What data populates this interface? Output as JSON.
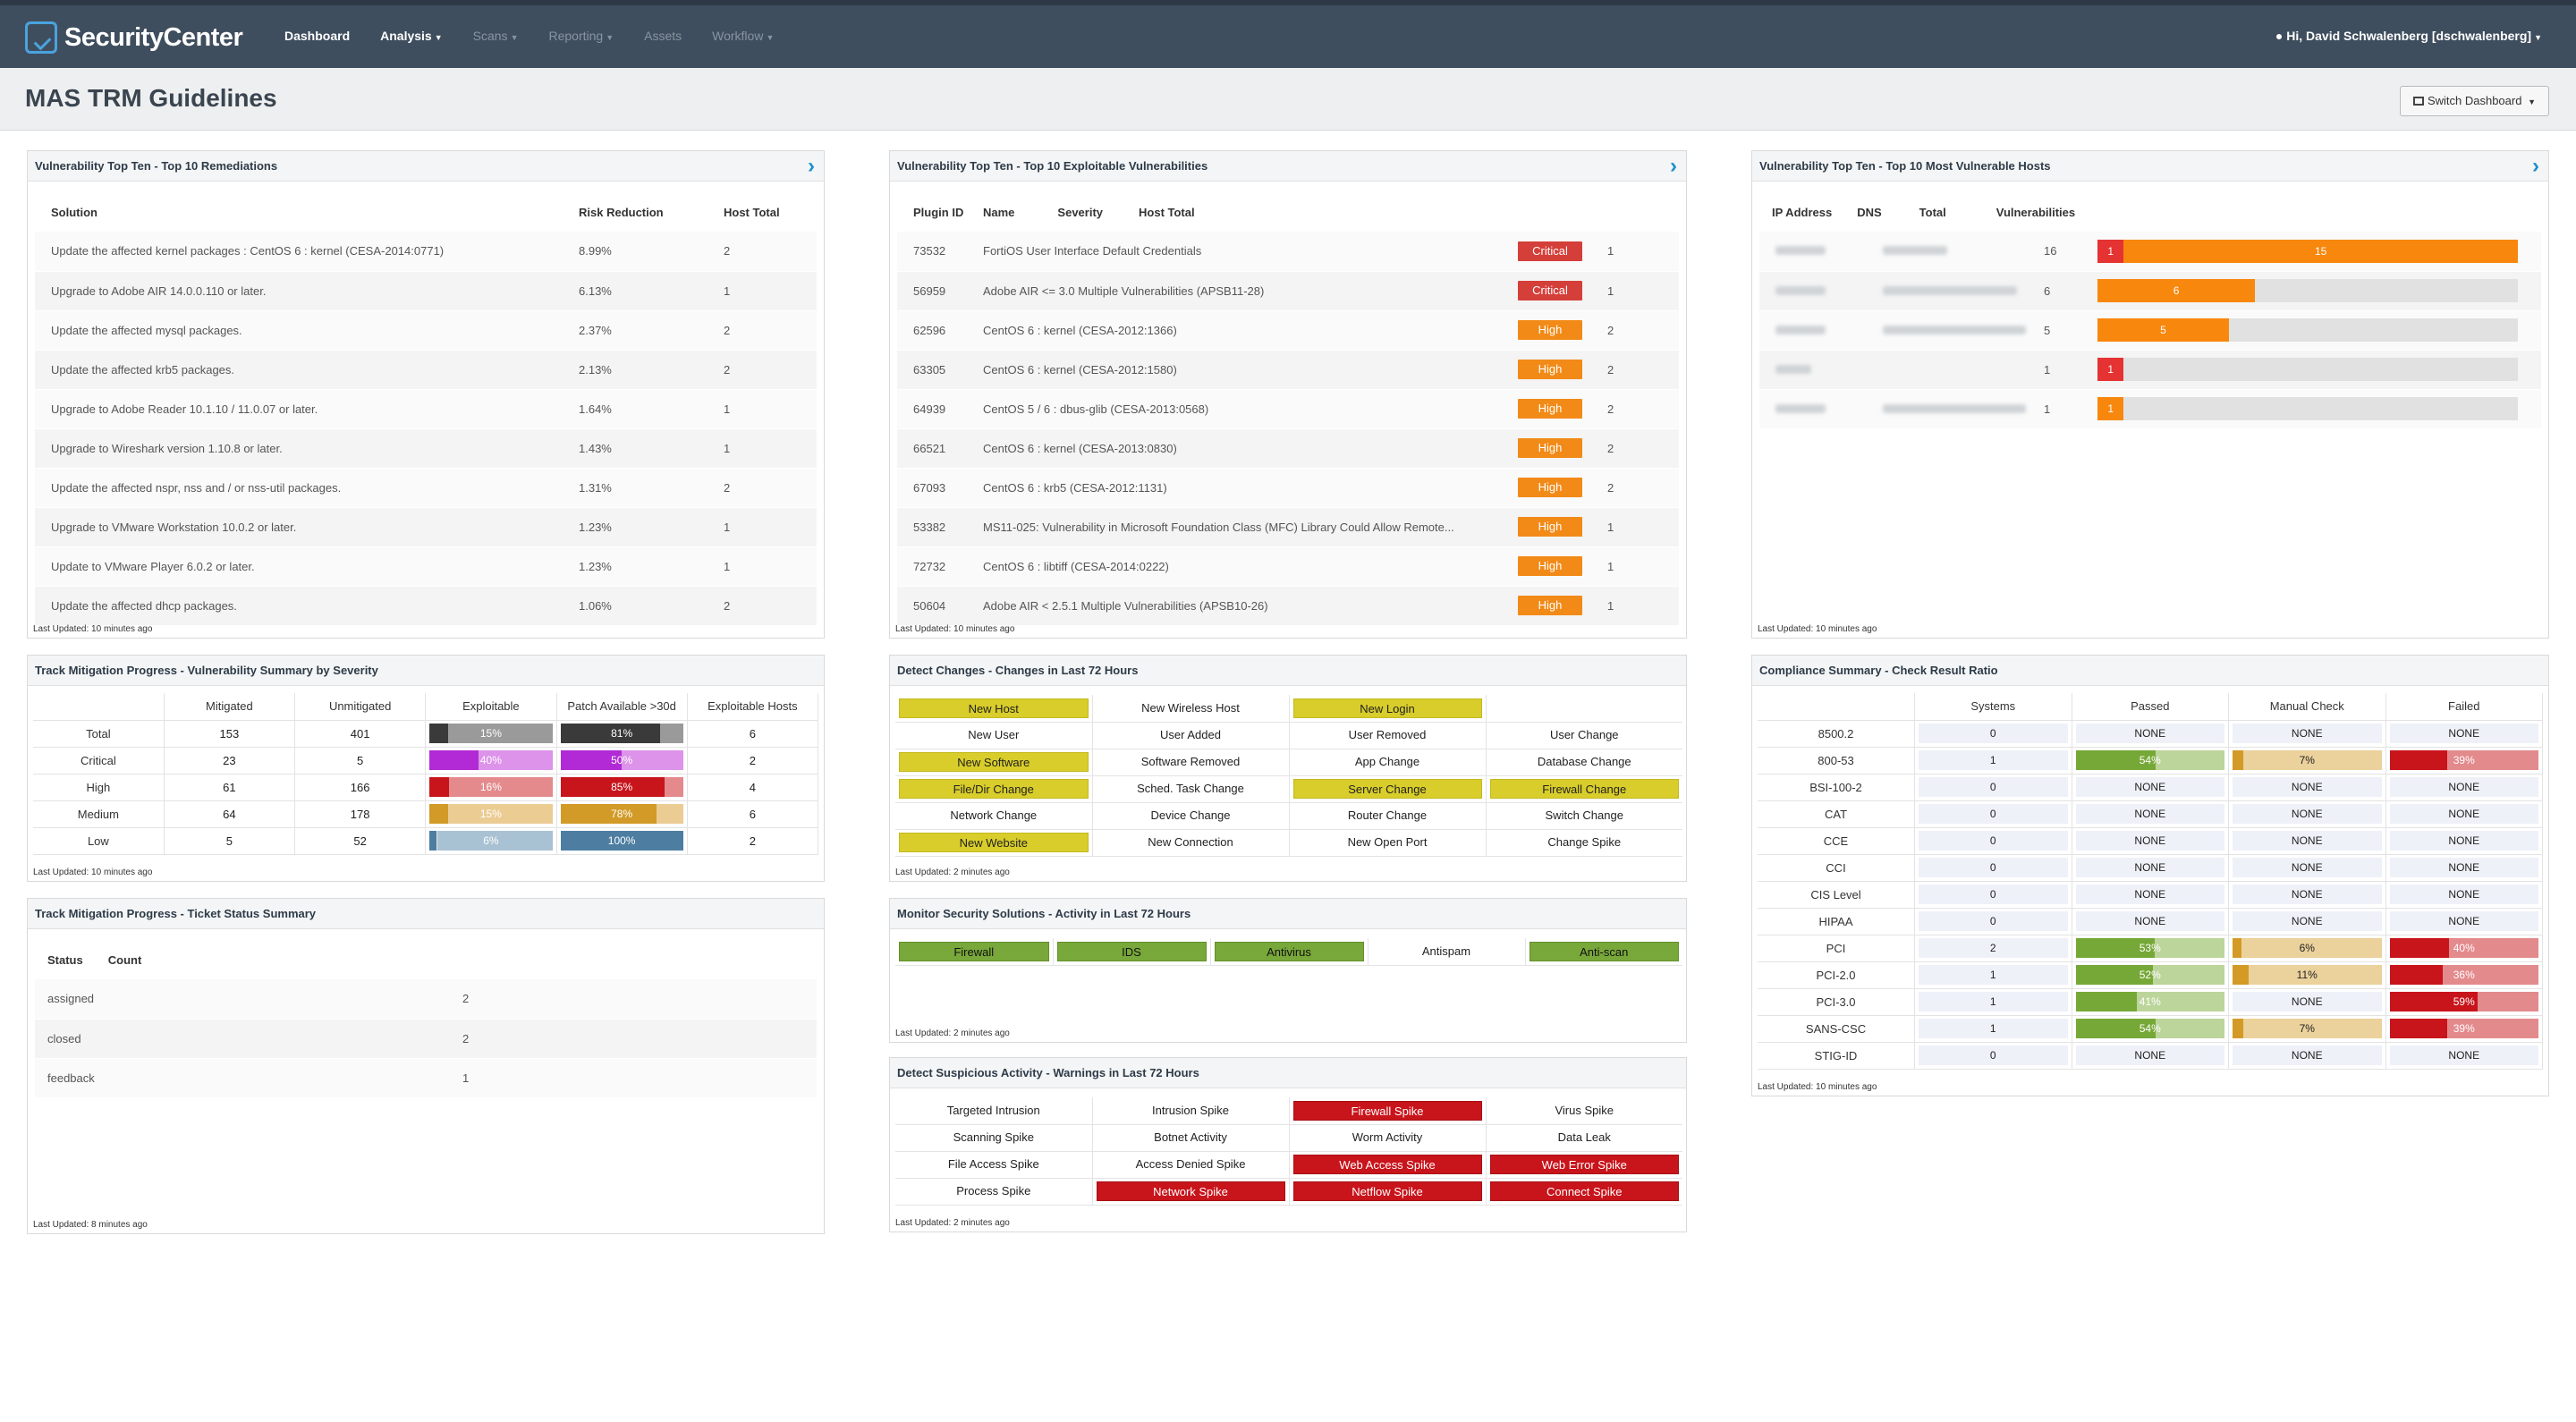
{
  "header": {
    "logo": "SecurityCenter",
    "nav": [
      {
        "label": "Dashboard",
        "caret": false,
        "dim": false
      },
      {
        "label": "Analysis",
        "caret": true,
        "dim": false
      },
      {
        "label": "Scans",
        "caret": true,
        "dim": true
      },
      {
        "label": "Reporting",
        "caret": true,
        "dim": true
      },
      {
        "label": "Assets",
        "caret": false,
        "dim": true
      },
      {
        "label": "Workflow",
        "caret": true,
        "dim": true
      }
    ],
    "user": "Hi, David Schwalenberg [dschwalenberg]"
  },
  "page": {
    "title": "MAS TRM Guidelines",
    "switch_label": "Switch Dashboard"
  },
  "remediations": {
    "title": "Vulnerability Top Ten - Top 10 Remediations",
    "columns": [
      "Solution",
      "Risk Reduction",
      "Host Total"
    ],
    "rows": [
      [
        "Update the affected kernel packages : CentOS 6 : kernel (CESA-2014:0771)",
        "8.99%",
        "2"
      ],
      [
        "Upgrade to Adobe AIR 14.0.0.110 or later.",
        "6.13%",
        "1"
      ],
      [
        "Update the affected mysql packages.",
        "2.37%",
        "2"
      ],
      [
        "Update the affected krb5 packages.",
        "2.13%",
        "2"
      ],
      [
        "Upgrade to Adobe Reader 10.1.10 / 11.0.07 or later.",
        "1.64%",
        "1"
      ],
      [
        "Upgrade to Wireshark version 1.10.8 or later.",
        "1.43%",
        "1"
      ],
      [
        "Update the affected nspr, nss and / or nss-util packages.",
        "1.31%",
        "2"
      ],
      [
        "Upgrade to VMware Workstation 10.0.2 or later.",
        "1.23%",
        "1"
      ],
      [
        "Update to VMware Player 6.0.2 or later.",
        "1.23%",
        "1"
      ],
      [
        "Update the affected dhcp packages.",
        "1.06%",
        "2"
      ]
    ],
    "footer": "Last Updated: 10 minutes ago"
  },
  "exploitable": {
    "title": "Vulnerability Top Ten - Top 10 Exploitable Vulnerabilities",
    "columns": [
      "Plugin ID",
      "Name",
      "Severity",
      "Host Total"
    ],
    "rows": [
      [
        "73532",
        "FortiOS User Interface Default Credentials",
        "Critical",
        "1"
      ],
      [
        "56959",
        "Adobe AIR <= 3.0 Multiple Vulnerabilities (APSB11-28)",
        "Critical",
        "1"
      ],
      [
        "62596",
        "CentOS 6 : kernel (CESA-2012:1366)",
        "High",
        "2"
      ],
      [
        "63305",
        "CentOS 6 : kernel (CESA-2012:1580)",
        "High",
        "2"
      ],
      [
        "64939",
        "CentOS 5 / 6 : dbus-glib (CESA-2013:0568)",
        "High",
        "2"
      ],
      [
        "66521",
        "CentOS 6 : kernel (CESA-2013:0830)",
        "High",
        "2"
      ],
      [
        "67093",
        "CentOS 6 : krb5 (CESA-2012:1131)",
        "High",
        "2"
      ],
      [
        "53382",
        "MS11-025: Vulnerability in Microsoft Foundation Class (MFC) Library Could Allow Remote...",
        "High",
        "1"
      ],
      [
        "72732",
        "CentOS 6 : libtiff (CESA-2014:0222)",
        "High",
        "1"
      ],
      [
        "50604",
        "Adobe AIR < 2.5.1 Multiple Vulnerabilities (APSB10-26)",
        "High",
        "1"
      ]
    ],
    "footer": "Last Updated: 10 minutes ago"
  },
  "hosts": {
    "title": "Vulnerability Top Ten - Top 10 Most Vulnerable Hosts",
    "columns": [
      "IP Address",
      "DNS",
      "Total",
      "Vulnerabilities"
    ],
    "max_total": 16,
    "rows": [
      {
        "total": "16",
        "critical": 1,
        "high": 15,
        "crit_label": "1",
        "high_label": "15"
      },
      {
        "total": "6",
        "critical": 0,
        "high": 6,
        "crit_label": "",
        "high_label": "6"
      },
      {
        "total": "5",
        "critical": 0,
        "high": 5,
        "crit_label": "",
        "high_label": "5"
      },
      {
        "total": "1",
        "critical": 1,
        "high": 0,
        "crit_label": "1",
        "high_label": ""
      },
      {
        "total": "1",
        "critical": 0,
        "high": 1,
        "crit_label": "",
        "high_label": "1"
      }
    ],
    "footer": "Last Updated: 10 minutes ago"
  },
  "mitigation": {
    "title": "Track Mitigation Progress - Vulnerability Summary by Severity",
    "columns": [
      "",
      "Mitigated",
      "Unmitigated",
      "Exploitable",
      "Patch Available >30d",
      "Exploitable Hosts"
    ],
    "rows": [
      {
        "label": "Total",
        "mitigated": "153",
        "unmitigated": "401",
        "exploitable": 15,
        "exploitable_label": "15%",
        "patch": 81,
        "patch_label": "81%",
        "hosts": "6",
        "fill": "#3a3a3a",
        "rest": "#9a9a9a"
      },
      {
        "label": "Critical",
        "mitigated": "23",
        "unmitigated": "5",
        "exploitable": 40,
        "exploitable_label": "40%",
        "patch": 50,
        "patch_label": "50%",
        "hosts": "2",
        "fill": "#b12ad6",
        "rest": "#dd93ea"
      },
      {
        "label": "High",
        "mitigated": "61",
        "unmitigated": "166",
        "exploitable": 16,
        "exploitable_label": "16%",
        "patch": 85,
        "patch_label": "85%",
        "hosts": "4",
        "fill": "#c8141b",
        "rest": "#e48a8d"
      },
      {
        "label": "Medium",
        "mitigated": "64",
        "unmitigated": "178",
        "exploitable": 15,
        "exploitable_label": "15%",
        "patch": 78,
        "patch_label": "78%",
        "hosts": "6",
        "fill": "#d29a27",
        "rest": "#ebcc93"
      },
      {
        "label": "Low",
        "mitigated": "5",
        "unmitigated": "52",
        "exploitable": 6,
        "exploitable_label": "6%",
        "patch": 100,
        "patch_label": "100%",
        "hosts": "2",
        "fill": "#4d7ea1",
        "rest": "#a9c2d3"
      }
    ],
    "footer": "Last Updated: 10 minutes ago"
  },
  "tickets": {
    "title": "Track Mitigation Progress - Ticket Status Summary",
    "columns": [
      "Status",
      "Count"
    ],
    "rows": [
      [
        "assigned",
        "2"
      ],
      [
        "closed",
        "2"
      ],
      [
        "feedback",
        "1"
      ]
    ],
    "footer": "Last Updated: 8 minutes ago"
  },
  "changes": {
    "title": "Detect Changes - Changes in Last 72 Hours",
    "cells": [
      [
        {
          "t": "New Host",
          "c": "yellow"
        },
        {
          "t": "New Wireless Host",
          "c": ""
        },
        {
          "t": "New Login",
          "c": "yellow"
        },
        {
          "t": "",
          "c": ""
        }
      ],
      [
        {
          "t": "New User",
          "c": ""
        },
        {
          "t": "User Added",
          "c": ""
        },
        {
          "t": "User Removed",
          "c": ""
        },
        {
          "t": "User Change",
          "c": ""
        }
      ],
      [
        {
          "t": "New Software",
          "c": "yellow"
        },
        {
          "t": "Software Removed",
          "c": ""
        },
        {
          "t": "App Change",
          "c": ""
        },
        {
          "t": "Database Change",
          "c": ""
        }
      ],
      [
        {
          "t": "File/Dir Change",
          "c": "yellow"
        },
        {
          "t": "Sched. Task Change",
          "c": ""
        },
        {
          "t": "Server Change",
          "c": "yellow"
        },
        {
          "t": "Firewall Change",
          "c": "yellow"
        }
      ],
      [
        {
          "t": "Network Change",
          "c": ""
        },
        {
          "t": "Device Change",
          "c": ""
        },
        {
          "t": "Router Change",
          "c": ""
        },
        {
          "t": "Switch Change",
          "c": ""
        }
      ],
      [
        {
          "t": "New Website",
          "c": "yellow"
        },
        {
          "t": "New Connection",
          "c": ""
        },
        {
          "t": "New Open Port",
          "c": ""
        },
        {
          "t": "Change Spike",
          "c": ""
        }
      ]
    ],
    "footer": "Last Updated: 2 minutes ago"
  },
  "security": {
    "title": "Monitor Security Solutions - Activity in Last 72 Hours",
    "cells": [
      [
        {
          "t": "Firewall",
          "c": "green"
        },
        {
          "t": "IDS",
          "c": "green"
        },
        {
          "t": "Antivirus",
          "c": "green"
        },
        {
          "t": "Antispam",
          "c": ""
        },
        {
          "t": "Anti-scan",
          "c": "green"
        }
      ]
    ],
    "footer": "Last Updated: 2 minutes ago"
  },
  "suspicious": {
    "title": "Detect Suspicious Activity - Warnings in Last 72 Hours",
    "cells": [
      [
        {
          "t": "Targeted Intrusion",
          "c": ""
        },
        {
          "t": "Intrusion Spike",
          "c": ""
        },
        {
          "t": "Firewall Spike",
          "c": "red"
        },
        {
          "t": "Virus Spike",
          "c": ""
        }
      ],
      [
        {
          "t": "Scanning Spike",
          "c": ""
        },
        {
          "t": "Botnet Activity",
          "c": ""
        },
        {
          "t": "Worm Activity",
          "c": ""
        },
        {
          "t": "Data Leak",
          "c": ""
        }
      ],
      [
        {
          "t": "File Access Spike",
          "c": ""
        },
        {
          "t": "Access Denied Spike",
          "c": ""
        },
        {
          "t": "Web Access Spike",
          "c": "red"
        },
        {
          "t": "Web Error Spike",
          "c": "red"
        }
      ],
      [
        {
          "t": "Process Spike",
          "c": ""
        },
        {
          "t": "Network Spike",
          "c": "red"
        },
        {
          "t": "Netflow Spike",
          "c": "red"
        },
        {
          "t": "Connect Spike",
          "c": "red"
        }
      ]
    ],
    "footer": "Last Updated: 2 minutes ago"
  },
  "compliance": {
    "title": "Compliance Summary - Check Result Ratio",
    "columns": [
      "",
      "Systems",
      "Passed",
      "Manual Check",
      "Failed"
    ],
    "rows": [
      {
        "label": "8500.2",
        "systems": "0",
        "passed": null,
        "manual": null,
        "failed": null
      },
      {
        "label": "800-53",
        "systems": "1",
        "passed": 54,
        "passed_label": "54%",
        "manual": 7,
        "manual_label": "7%",
        "failed": 39,
        "failed_label": "39%"
      },
      {
        "label": "BSI-100-2",
        "systems": "0",
        "passed": null,
        "manual": null,
        "failed": null
      },
      {
        "label": "CAT",
        "systems": "0",
        "passed": null,
        "manual": null,
        "failed": null
      },
      {
        "label": "CCE",
        "systems": "0",
        "passed": null,
        "manual": null,
        "failed": null
      },
      {
        "label": "CCI",
        "systems": "0",
        "passed": null,
        "manual": null,
        "failed": null
      },
      {
        "label": "CIS Level",
        "systems": "0",
        "passed": null,
        "manual": null,
        "failed": null
      },
      {
        "label": "HIPAA",
        "systems": "0",
        "passed": null,
        "manual": null,
        "failed": null
      },
      {
        "label": "PCI",
        "systems": "2",
        "passed": 53,
        "passed_label": "53%",
        "manual": 6,
        "manual_label": "6%",
        "failed": 40,
        "failed_label": "40%"
      },
      {
        "label": "PCI-2.0",
        "systems": "1",
        "passed": 52,
        "passed_label": "52%",
        "manual": 11,
        "manual_label": "11%",
        "failed": 36,
        "failed_label": "36%"
      },
      {
        "label": "PCI-3.0",
        "systems": "1",
        "passed": 41,
        "passed_label": "41%",
        "manual": null,
        "failed": 59,
        "failed_label": "59%"
      },
      {
        "label": "SANS-CSC",
        "systems": "1",
        "passed": 54,
        "passed_label": "54%",
        "manual": 7,
        "manual_label": "7%",
        "failed": 39,
        "failed_label": "39%"
      },
      {
        "label": "STIG-ID",
        "systems": "0",
        "passed": null,
        "manual": null,
        "failed": null
      }
    ],
    "none_label": "NONE",
    "footer": "Last Updated: 10 minutes ago"
  },
  "colors": {
    "pass": "#76a837",
    "pass_rest": "#bcd59b",
    "manual": "#d39a26",
    "manual_rest": "#ebd19b",
    "fail": "#c8141b",
    "fail_rest": "#e38a8d"
  }
}
